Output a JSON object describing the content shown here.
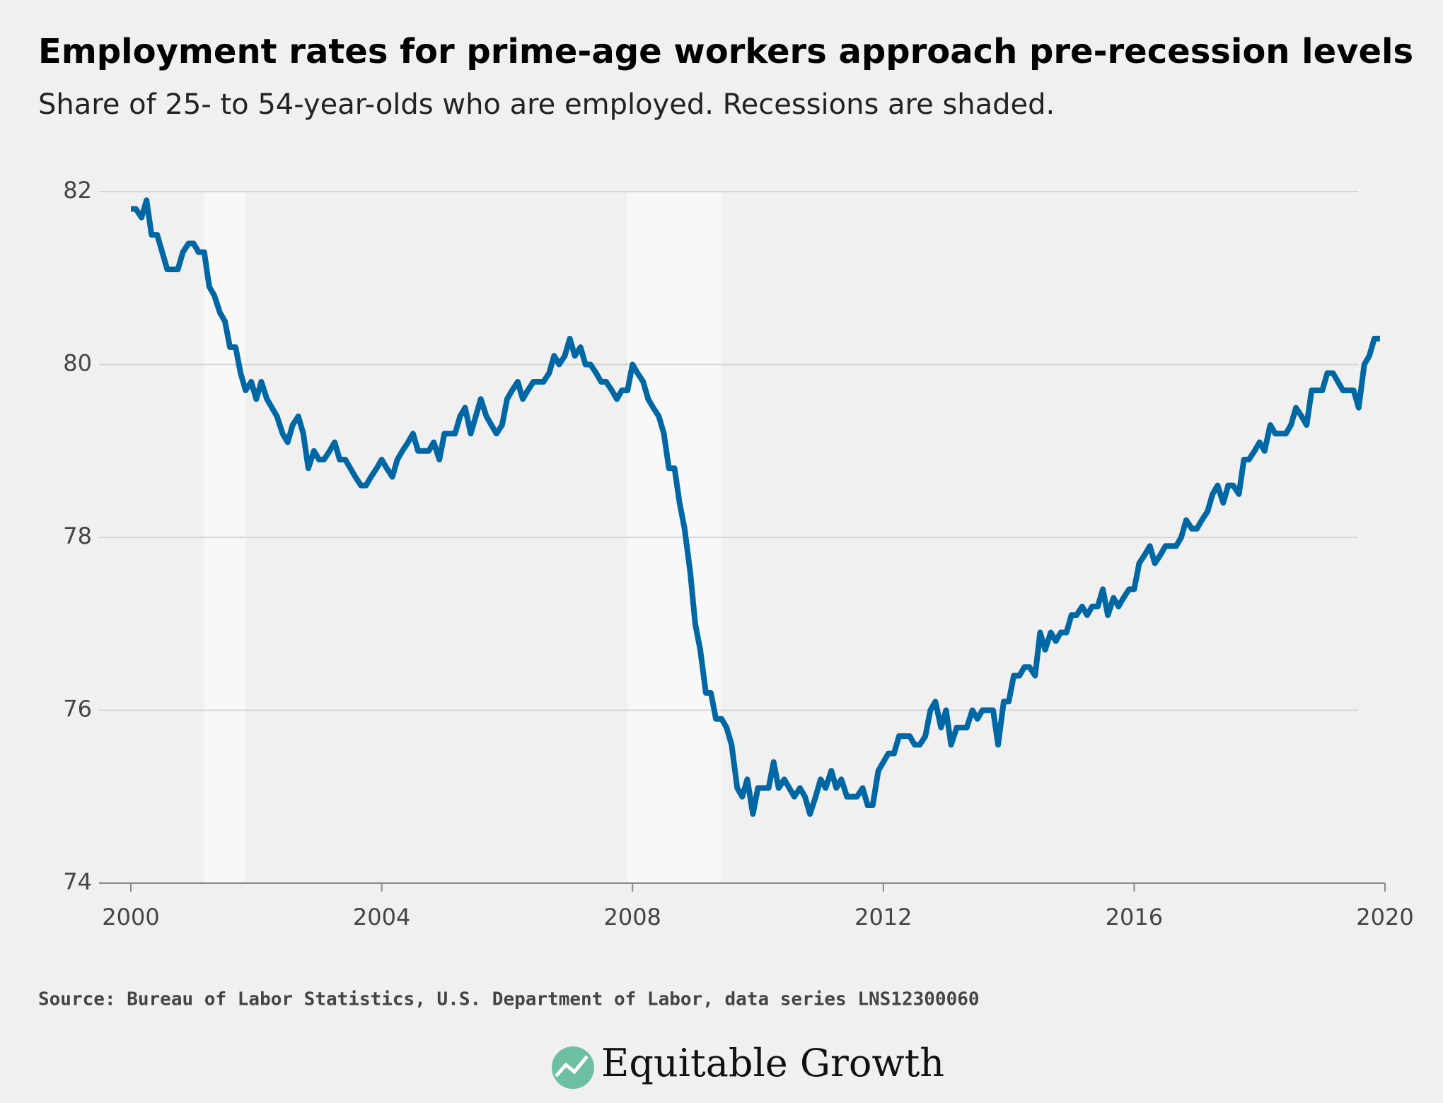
{
  "chart_data": {
    "type": "line",
    "title": "Employment rates for prime-age workers approach pre-recession levels",
    "subtitle": "Share of 25- to 54-year-olds who are employed. Recessions are shaded.",
    "source": "Source: Bureau of Labor Statistics, U.S. Department of Labor, data series LNS12300060",
    "logo": "Equitable Growth",
    "recessions": [
      [
        2001.17,
        2001.83
      ],
      [
        2007.92,
        2009.42
      ]
    ],
    "x": [
      2000,
      2000.08,
      2000.17,
      2000.25,
      2000.33,
      2000.42,
      2000.5,
      2000.58,
      2000.67,
      2000.75,
      2000.83,
      2000.92,
      2001,
      2001.08,
      2001.17,
      2001.25,
      2001.33,
      2001.42,
      2001.5,
      2001.58,
      2001.67,
      2001.75,
      2001.83,
      2001.92,
      2002,
      2002.08,
      2002.17,
      2002.25,
      2002.33,
      2002.42,
      2002.5,
      2002.58,
      2002.67,
      2002.75,
      2002.83,
      2002.92,
      2003,
      2003.08,
      2003.17,
      2003.25,
      2003.33,
      2003.42,
      2003.5,
      2003.58,
      2003.67,
      2003.75,
      2003.83,
      2003.92,
      2004,
      2004.08,
      2004.17,
      2004.25,
      2004.33,
      2004.42,
      2004.5,
      2004.58,
      2004.67,
      2004.75,
      2004.83,
      2004.92,
      2005,
      2005.08,
      2005.17,
      2005.25,
      2005.33,
      2005.42,
      2005.5,
      2005.58,
      2005.67,
      2005.75,
      2005.83,
      2005.92,
      2006,
      2006.08,
      2006.17,
      2006.25,
      2006.33,
      2006.42,
      2006.5,
      2006.58,
      2006.67,
      2006.75,
      2006.83,
      2006.92,
      2007,
      2007.08,
      2007.17,
      2007.25,
      2007.33,
      2007.42,
      2007.5,
      2007.58,
      2007.67,
      2007.75,
      2007.83,
      2007.92,
      2008,
      2008.08,
      2008.17,
      2008.25,
      2008.33,
      2008.42,
      2008.5,
      2008.58,
      2008.67,
      2008.75,
      2008.83,
      2008.92,
      2009,
      2009.08,
      2009.17,
      2009.25,
      2009.33,
      2009.42,
      2009.5,
      2009.58,
      2009.67,
      2009.75,
      2009.83,
      2009.92,
      2010,
      2010.08,
      2010.17,
      2010.25,
      2010.33,
      2010.42,
      2010.5,
      2010.58,
      2010.67,
      2010.75,
      2010.83,
      2010.92,
      2011,
      2011.08,
      2011.17,
      2011.25,
      2011.33,
      2011.42,
      2011.5,
      2011.58,
      2011.67,
      2011.75,
      2011.83,
      2011.92,
      2012,
      2012.08,
      2012.17,
      2012.25,
      2012.33,
      2012.42,
      2012.5,
      2012.58,
      2012.67,
      2012.75,
      2012.83,
      2012.92,
      2013,
      2013.08,
      2013.17,
      2013.25,
      2013.33,
      2013.42,
      2013.5,
      2013.58,
      2013.67,
      2013.75,
      2013.83,
      2013.92,
      2014,
      2014.08,
      2014.17,
      2014.25,
      2014.33,
      2014.42,
      2014.5,
      2014.58,
      2014.67,
      2014.75,
      2014.83,
      2014.92,
      2015,
      2015.08,
      2015.17,
      2015.25,
      2015.33,
      2015.42,
      2015.5,
      2015.58,
      2015.67,
      2015.75,
      2015.83,
      2015.92,
      2016,
      2016.08,
      2016.17,
      2016.25,
      2016.33,
      2016.42,
      2016.5,
      2016.58,
      2016.67,
      2016.75,
      2016.83,
      2016.92,
      2017,
      2017.08,
      2017.17,
      2017.25,
      2017.33,
      2017.42,
      2017.5,
      2017.58,
      2017.67,
      2017.75,
      2017.83,
      2017.92,
      2018,
      2018.08,
      2018.17,
      2018.25,
      2018.33,
      2018.42,
      2018.5,
      2018.58,
      2018.67,
      2018.75,
      2018.83,
      2018.92,
      2019,
      2019.08,
      2019.17,
      2019.25,
      2019.33,
      2019.42,
      2019.5,
      2019.58,
      2019.67,
      2019.75,
      2019.83,
      2019.92
    ],
    "series": [
      {
        "color": "#0067a5",
        "values": [
          81.8,
          81.8,
          81.7,
          81.9,
          81.5,
          81.5,
          81.3,
          81.1,
          81.1,
          81.1,
          81.3,
          81.4,
          81.4,
          81.3,
          81.3,
          80.9,
          80.8,
          80.6,
          80.5,
          80.2,
          80.2,
          79.9,
          79.7,
          79.8,
          79.6,
          79.8,
          79.6,
          79.5,
          79.4,
          79.2,
          79.1,
          79.3,
          79.4,
          79.2,
          78.8,
          79.0,
          78.9,
          78.9,
          79.0,
          79.1,
          78.9,
          78.9,
          78.8,
          78.7,
          78.6,
          78.6,
          78.7,
          78.8,
          78.9,
          78.8,
          78.7,
          78.9,
          79.0,
          79.1,
          79.2,
          79.0,
          79.0,
          79.0,
          79.1,
          78.9,
          79.2,
          79.2,
          79.2,
          79.4,
          79.5,
          79.2,
          79.4,
          79.6,
          79.4,
          79.3,
          79.2,
          79.3,
          79.6,
          79.7,
          79.8,
          79.6,
          79.7,
          79.8,
          79.8,
          79.8,
          79.9,
          80.1,
          80.0,
          80.1,
          80.3,
          80.1,
          80.2,
          80.0,
          80.0,
          79.9,
          79.8,
          79.8,
          79.7,
          79.6,
          79.7,
          79.7,
          80.0,
          79.9,
          79.8,
          79.6,
          79.5,
          79.4,
          79.2,
          78.8,
          78.8,
          78.4,
          78.1,
          77.6,
          77.0,
          76.7,
          76.2,
          76.2,
          75.9,
          75.9,
          75.8,
          75.6,
          75.1,
          75.0,
          75.2,
          74.8,
          75.1,
          75.1,
          75.1,
          75.4,
          75.1,
          75.2,
          75.1,
          75.0,
          75.1,
          75.0,
          74.8,
          75.0,
          75.2,
          75.1,
          75.3,
          75.1,
          75.2,
          75.0,
          75.0,
          75.0,
          75.1,
          74.9,
          74.9,
          75.3,
          75.4,
          75.5,
          75.5,
          75.7,
          75.7,
          75.7,
          75.6,
          75.6,
          75.7,
          76.0,
          76.1,
          75.8,
          76.0,
          75.6,
          75.8,
          75.8,
          75.8,
          76.0,
          75.9,
          76.0,
          76.0,
          76.0,
          75.6,
          76.1,
          76.1,
          76.4,
          76.4,
          76.5,
          76.5,
          76.4,
          76.9,
          76.7,
          76.9,
          76.8,
          76.9,
          76.9,
          77.1,
          77.1,
          77.2,
          77.1,
          77.2,
          77.2,
          77.4,
          77.1,
          77.3,
          77.2,
          77.3,
          77.4,
          77.4,
          77.7,
          77.8,
          77.9,
          77.7,
          77.8,
          77.9,
          77.9,
          77.9,
          78.0,
          78.2,
          78.1,
          78.1,
          78.2,
          78.3,
          78.5,
          78.6,
          78.4,
          78.6,
          78.6,
          78.5,
          78.9,
          78.9,
          79.0,
          79.1,
          79.0,
          79.3,
          79.2,
          79.2,
          79.2,
          79.3,
          79.5,
          79.4,
          79.3,
          79.7,
          79.7,
          79.7,
          79.9,
          79.9,
          79.8,
          79.7,
          79.7,
          79.7,
          79.5,
          80.0,
          80.1,
          80.3,
          80.3
        ]
      }
    ],
    "xlim": [
      2000,
      2020
    ],
    "xticks": [
      2000,
      2004,
      2008,
      2012,
      2016,
      2020
    ],
    "ylim": [
      74,
      82
    ],
    "yticks": [
      74,
      76,
      78,
      80,
      82
    ],
    "grid": true
  }
}
